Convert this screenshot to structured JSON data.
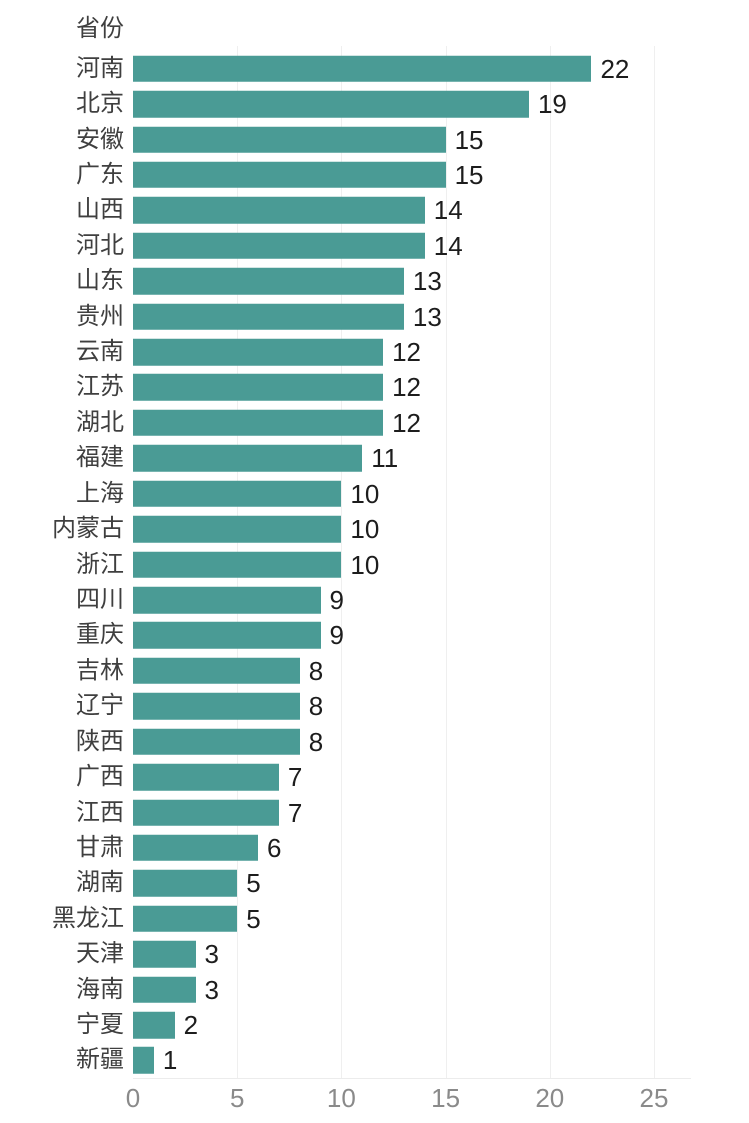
{
  "chart_data": {
    "type": "bar",
    "orientation": "horizontal",
    "title": "省份",
    "categories": [
      "河南",
      "北京",
      "安徽",
      "广东",
      "山西",
      "河北",
      "山东",
      "贵州",
      "云南",
      "江苏",
      "湖北",
      "福建",
      "上海",
      "内蒙古",
      "浙江",
      "四川",
      "重庆",
      "吉林",
      "辽宁",
      "陕西",
      "广西",
      "江西",
      "甘肃",
      "湖南",
      "黑龙江",
      "天津",
      "海南",
      "宁夏",
      "新疆"
    ],
    "values": [
      22,
      19,
      15,
      15,
      14,
      14,
      13,
      13,
      12,
      12,
      12,
      11,
      10,
      10,
      10,
      9,
      9,
      8,
      8,
      8,
      7,
      7,
      6,
      5,
      5,
      3,
      3,
      2,
      1
    ],
    "xlabel": "",
    "ylabel": "省份",
    "xlim": [
      0,
      25
    ],
    "x_ticks": [
      0,
      5,
      10,
      15,
      20,
      25
    ],
    "bar_color": "#4A9B95",
    "grid": "vertical-light",
    "legend": "none",
    "value_labels_shown": true
  }
}
